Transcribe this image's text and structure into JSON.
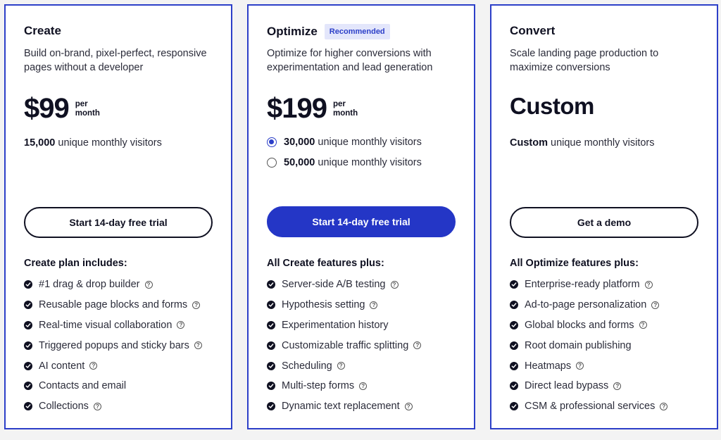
{
  "plans": [
    {
      "title": "Create",
      "description": "Build on-brand, pixel-perfect, responsive pages without a developer",
      "price": "$99",
      "price_unit": [
        "per",
        "month"
      ],
      "visitors_bold": "15,000",
      "visitors_text": "unique monthly visitors",
      "cta": "Start 14-day free trial",
      "features_title": "Create plan includes:",
      "features": [
        {
          "label": "#1 drag & drop builder",
          "help": true
        },
        {
          "label": "Reusable page blocks and forms",
          "help": true
        },
        {
          "label": "Real-time visual collaboration",
          "help": true
        },
        {
          "label": "Triggered popups and sticky bars",
          "help": true
        },
        {
          "label": "AI content",
          "help": true
        },
        {
          "label": "Contacts and email",
          "help": false
        },
        {
          "label": "Collections",
          "help": true
        }
      ]
    },
    {
      "title": "Optimize",
      "badge": "Recommended",
      "description": "Optimize for higher conversions with experimentation and lead generation",
      "price": "$199",
      "price_unit": [
        "per",
        "month"
      ],
      "visitor_options": [
        {
          "bold": "30,000",
          "text": "unique monthly visitors",
          "selected": true
        },
        {
          "bold": "50,000",
          "text": "unique monthly visitors",
          "selected": false
        }
      ],
      "cta": "Start 14-day free trial",
      "features_title": "All Create features plus:",
      "features": [
        {
          "label": "Server-side A/B testing",
          "help": true
        },
        {
          "label": "Hypothesis setting",
          "help": true
        },
        {
          "label": "Experimentation history",
          "help": false
        },
        {
          "label": "Customizable traffic splitting",
          "help": true
        },
        {
          "label": "Scheduling",
          "help": true
        },
        {
          "label": "Multi-step forms",
          "help": true
        },
        {
          "label": "Dynamic text replacement",
          "help": true
        }
      ]
    },
    {
      "title": "Convert",
      "description": "Scale landing page production to maximize conversions",
      "price": "Custom",
      "visitors_bold": "Custom",
      "visitors_text": "unique monthly visitors",
      "cta": "Get a demo",
      "features_title": "All Optimize features plus:",
      "features": [
        {
          "label": "Enterprise-ready platform",
          "help": true
        },
        {
          "label": "Ad-to-page personalization",
          "help": true
        },
        {
          "label": "Global blocks and forms",
          "help": true
        },
        {
          "label": "Root domain publishing",
          "help": false
        },
        {
          "label": "Heatmaps",
          "help": true
        },
        {
          "label": "Direct lead bypass",
          "help": true
        },
        {
          "label": "CSM & professional services",
          "help": true
        }
      ]
    }
  ],
  "help_glyph": "?",
  "colors": {
    "accent": "#2c3fc8",
    "button_primary": "#2436c6",
    "text": "#0f1021",
    "badge_bg": "#e3e6fb"
  }
}
